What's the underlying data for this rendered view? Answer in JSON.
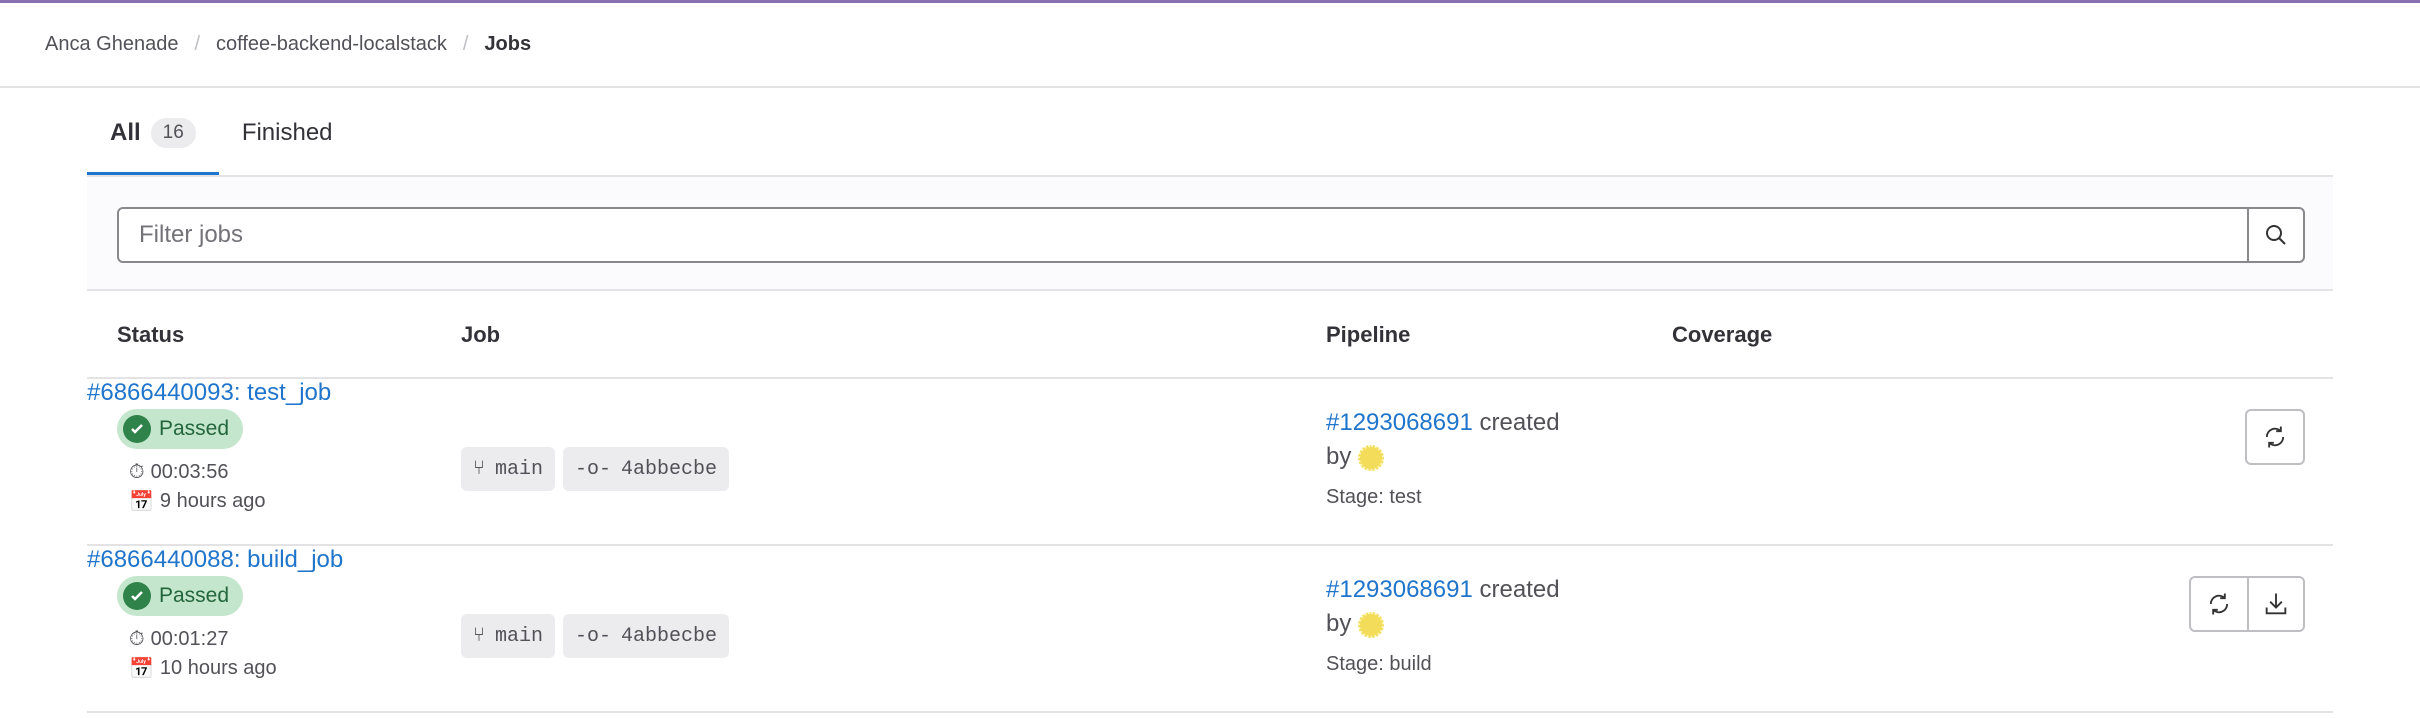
{
  "breadcrumb": [
    "Anca Ghenade",
    "coffee-backend-localstack",
    "Jobs"
  ],
  "tabs": [
    {
      "label": "All",
      "count": "16"
    },
    {
      "label": "Finished"
    }
  ],
  "filter": {
    "placeholder": "Filter jobs",
    "value": ""
  },
  "table": {
    "headers": [
      "Status",
      "Job",
      "Pipeline",
      "Coverage"
    ],
    "rows": [
      {
        "status": "Passed",
        "duration": "00:03:56",
        "finished": "9 hours ago",
        "job": "#6866440093: test_job",
        "branch": "main",
        "commit": "4abbecbe",
        "pipeline": "#1293068691",
        "created": "created",
        "by": "by",
        "stage": "Stage: test",
        "coverage": "",
        "actions": [
          "retry-icon"
        ]
      },
      {
        "status": "Passed",
        "duration": "00:01:27",
        "finished": "10 hours ago",
        "job": "#6866440088: build_job",
        "branch": "main",
        "commit": "4abbecbe",
        "pipeline": "#1293068691",
        "created": "created",
        "by": "by",
        "stage": "Stage: build",
        "coverage": "",
        "actions": [
          "retry-icon",
          "download-icon"
        ]
      }
    ]
  },
  "colors": {
    "accent": "#1f75cb",
    "success": "#2f8249",
    "topbar": "#8b6fb3"
  }
}
